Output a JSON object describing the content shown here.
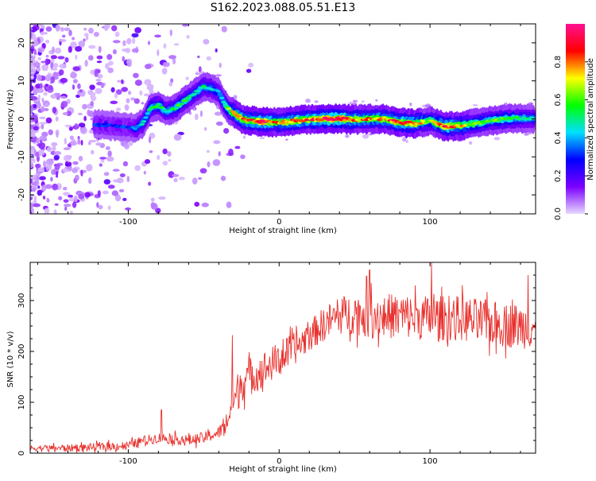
{
  "title": "S162.2023.088.05.51.E13",
  "chart_data": [
    {
      "type": "heatmap",
      "xlabel": "Height of straight line (km)",
      "ylabel": "Frequency (Hz)",
      "xlim": [
        -165,
        170
      ],
      "ylim": [
        -25,
        25
      ],
      "xticks": [
        -100,
        0,
        100
      ],
      "yticks": [
        -20,
        -10,
        0,
        10,
        20
      ],
      "colorbar": {
        "label": "Normalized spectral amplitude",
        "range": [
          0,
          1
        ],
        "ticks": [
          "0.0",
          "0.2",
          "0.4",
          "0.6",
          "0.8"
        ],
        "colors": [
          "#e8d8ff",
          "#7b00ff",
          "#0000ff",
          "#00e0ff",
          "#00ff00",
          "#ffff00",
          "#ff0000",
          "#ff1090"
        ]
      },
      "ridge": {
        "x": [
          -120,
          -110,
          -100,
          -95,
          -90,
          -85,
          -80,
          -75,
          -70,
          -65,
          -60,
          -55,
          -50,
          -45,
          -40,
          -35,
          -30,
          -25,
          -20,
          -10,
          0,
          10,
          20,
          30,
          40,
          50,
          60,
          70,
          80,
          90,
          100,
          110,
          120,
          130,
          140,
          150,
          160,
          168
        ],
        "y": [
          -1.5,
          -1.8,
          -2.2,
          -2.5,
          -1.0,
          3.0,
          3.5,
          2.0,
          2.5,
          4.0,
          5.5,
          7.0,
          8.5,
          8.0,
          7.0,
          3.0,
          1.5,
          0.0,
          -0.5,
          -0.8,
          -1.0,
          -0.5,
          -0.2,
          0.0,
          0.0,
          -0.2,
          0.0,
          0.0,
          -1.0,
          -1.2,
          -0.5,
          -2.0,
          -1.8,
          -1.2,
          -0.5,
          0.0,
          0.2,
          0.0
        ],
        "amplitude": [
          0.3,
          0.3,
          0.3,
          0.35,
          0.45,
          0.5,
          0.55,
          0.5,
          0.5,
          0.55,
          0.5,
          0.45,
          0.5,
          0.45,
          0.4,
          0.55,
          0.7,
          0.8,
          0.85,
          0.9,
          0.75,
          0.85,
          0.8,
          0.95,
          0.95,
          0.8,
          0.75,
          0.8,
          0.85,
          0.8,
          0.6,
          0.85,
          0.75,
          0.6,
          0.55,
          0.6,
          0.5,
          0.45
        ]
      }
    },
    {
      "type": "line",
      "xlabel": "Height of straight line (km)",
      "ylabel": "SNR (10 * v/v)",
      "xlim": [
        -165,
        170
      ],
      "ylim": [
        0,
        375
      ],
      "xticks": [
        -100,
        0,
        100
      ],
      "yticks": [
        0,
        100,
        200,
        300
      ],
      "color": "#e8302c",
      "trend": {
        "x": [
          -165,
          -140,
          -120,
          -100,
          -90,
          -80,
          -70,
          -60,
          -50,
          -40,
          -35,
          -30,
          -25,
          -20,
          -10,
          0,
          10,
          20,
          30,
          40,
          50,
          60,
          80,
          100,
          120,
          140,
          160,
          170
        ],
        "y": [
          10,
          10,
          12,
          15,
          25,
          30,
          28,
          25,
          30,
          40,
          60,
          100,
          140,
          150,
          165,
          185,
          205,
          230,
          255,
          270,
          275,
          270,
          270,
          265,
          265,
          255,
          250,
          250
        ]
      },
      "noise": {
        "x": [
          -165,
          -40,
          -30,
          20,
          60,
          170
        ],
        "amplitude": [
          6,
          12,
          40,
          30,
          45,
          45
        ]
      },
      "peaks": [
        {
          "x": -78,
          "y": 85
        },
        {
          "x": -31,
          "y": 232
        },
        {
          "x": 18,
          "y": 245
        },
        {
          "x": 58,
          "y": 348
        },
        {
          "x": 60,
          "y": 360
        },
        {
          "x": 101,
          "y": 375
        },
        {
          "x": 165,
          "y": 350
        }
      ]
    }
  ]
}
